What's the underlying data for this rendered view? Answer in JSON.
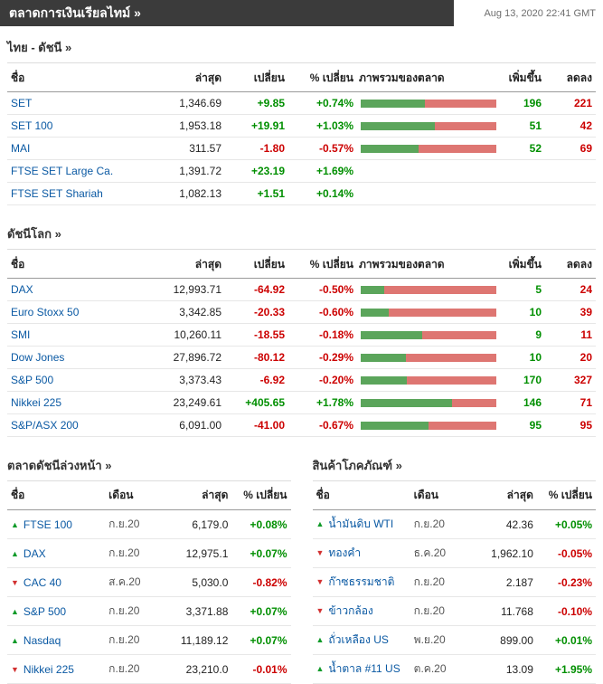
{
  "header": {
    "title": "ตลาดการเงินเรียลไทม์ »",
    "timestamp": "Aug 13, 2020 22:41 GMT"
  },
  "colors": {
    "accent_link": "#0a59a3",
    "positive": "#008f00",
    "negative": "#cc0000",
    "bar_green": "#5ba55b",
    "bar_red": "#de7672",
    "header_bar": "#3b3b3b"
  },
  "index_columns": {
    "name": "ชื่อ",
    "last": "ล่าสุด",
    "change": "เปลี่ยน",
    "pct_change": "% เปลี่ยน",
    "overview": "ภาพรวมของตลาด",
    "advancing": "เพิ่มขึ้น",
    "declining": "ลดลง"
  },
  "thai": {
    "title": "ไทย - ดัชนี  »",
    "rows": [
      {
        "name": "SET",
        "last": "1,346.69",
        "change": "+9.85",
        "pct": "+0.74%",
        "adv": 196,
        "dec": 221
      },
      {
        "name": "SET 100",
        "last": "1,953.18",
        "change": "+19.91",
        "pct": "+1.03%",
        "adv": 51,
        "dec": 42
      },
      {
        "name": "MAI",
        "last": "311.57",
        "change": "-1.80",
        "pct": "-0.57%",
        "adv": 52,
        "dec": 69
      },
      {
        "name": "FTSE SET Large Ca.",
        "last": "1,391.72",
        "change": "+23.19",
        "pct": "+1.69%"
      },
      {
        "name": "FTSE SET Shariah",
        "last": "1,082.13",
        "change": "+1.51",
        "pct": "+0.14%"
      }
    ]
  },
  "world": {
    "title": "ดัชนีโลก »",
    "rows": [
      {
        "name": "DAX",
        "last": "12,993.71",
        "change": "-64.92",
        "pct": "-0.50%",
        "adv": 5,
        "dec": 24
      },
      {
        "name": "Euro Stoxx 50",
        "last": "3,342.85",
        "change": "-20.33",
        "pct": "-0.60%",
        "adv": 10,
        "dec": 39
      },
      {
        "name": "SMI",
        "last": "10,260.11",
        "change": "-18.55",
        "pct": "-0.18%",
        "adv": 9,
        "dec": 11
      },
      {
        "name": "Dow Jones",
        "last": "27,896.72",
        "change": "-80.12",
        "pct": "-0.29%",
        "adv": 10,
        "dec": 20
      },
      {
        "name": "S&P 500",
        "last": "3,373.43",
        "change": "-6.92",
        "pct": "-0.20%",
        "adv": 170,
        "dec": 327
      },
      {
        "name": "Nikkei 225",
        "last": "23,249.61",
        "change": "+405.65",
        "pct": "+1.78%",
        "adv": 146,
        "dec": 71
      },
      {
        "name": "S&P/ASX 200",
        "last": "6,091.00",
        "change": "-41.00",
        "pct": "-0.67%",
        "adv": 95,
        "dec": 95
      }
    ]
  },
  "small_columns": {
    "name": "ชื่อ",
    "month": "เดือน",
    "last": "ล่าสุด",
    "pct_change": "% เปลี่ยน"
  },
  "futures": {
    "title": "ตลาดดัชนีล่วงหน้า »",
    "rows": [
      {
        "dir": "up",
        "name": "FTSE 100",
        "month": "ก.ย.20",
        "last": "6,179.0",
        "pct": "+0.08%"
      },
      {
        "dir": "up",
        "name": "DAX",
        "month": "ก.ย.20",
        "last": "12,975.1",
        "pct": "+0.07%"
      },
      {
        "dir": "down",
        "name": "CAC 40",
        "month": "ส.ค.20",
        "last": "5,030.0",
        "pct": "-0.82%"
      },
      {
        "dir": "up",
        "name": "S&P 500",
        "month": "ก.ย.20",
        "last": "3,371.88",
        "pct": "+0.07%"
      },
      {
        "dir": "up",
        "name": "Nasdaq",
        "month": "ก.ย.20",
        "last": "11,189.12",
        "pct": "+0.07%"
      },
      {
        "dir": "down",
        "name": "Nikkei 225",
        "month": "ก.ย.20",
        "last": "23,210.0",
        "pct": "-0.01%"
      }
    ]
  },
  "commodities": {
    "title": "สินค้าโภคภัณฑ์ »",
    "rows": [
      {
        "dir": "up",
        "name": "น้ำมันดิบ WTI",
        "month": "ก.ย.20",
        "last": "42.36",
        "pct": "+0.05%"
      },
      {
        "dir": "down",
        "name": "ทองคำ",
        "month": "ธ.ค.20",
        "last": "1,962.10",
        "pct": "-0.05%"
      },
      {
        "dir": "down",
        "name": "ก๊าซธรรมชาติ",
        "month": "ก.ย.20",
        "last": "2.187",
        "pct": "-0.23%"
      },
      {
        "dir": "down",
        "name": "ข้าวกล้อง",
        "month": "ก.ย.20",
        "last": "11.768",
        "pct": "-0.10%"
      },
      {
        "dir": "up",
        "name": "ถั่วเหลือง US",
        "month": "พ.ย.20",
        "last": "899.00",
        "pct": "+0.01%"
      },
      {
        "dir": "up",
        "name": "น้ำตาล #11 US",
        "month": "ต.ค.20",
        "last": "13.09",
        "pct": "+1.95%"
      }
    ]
  }
}
